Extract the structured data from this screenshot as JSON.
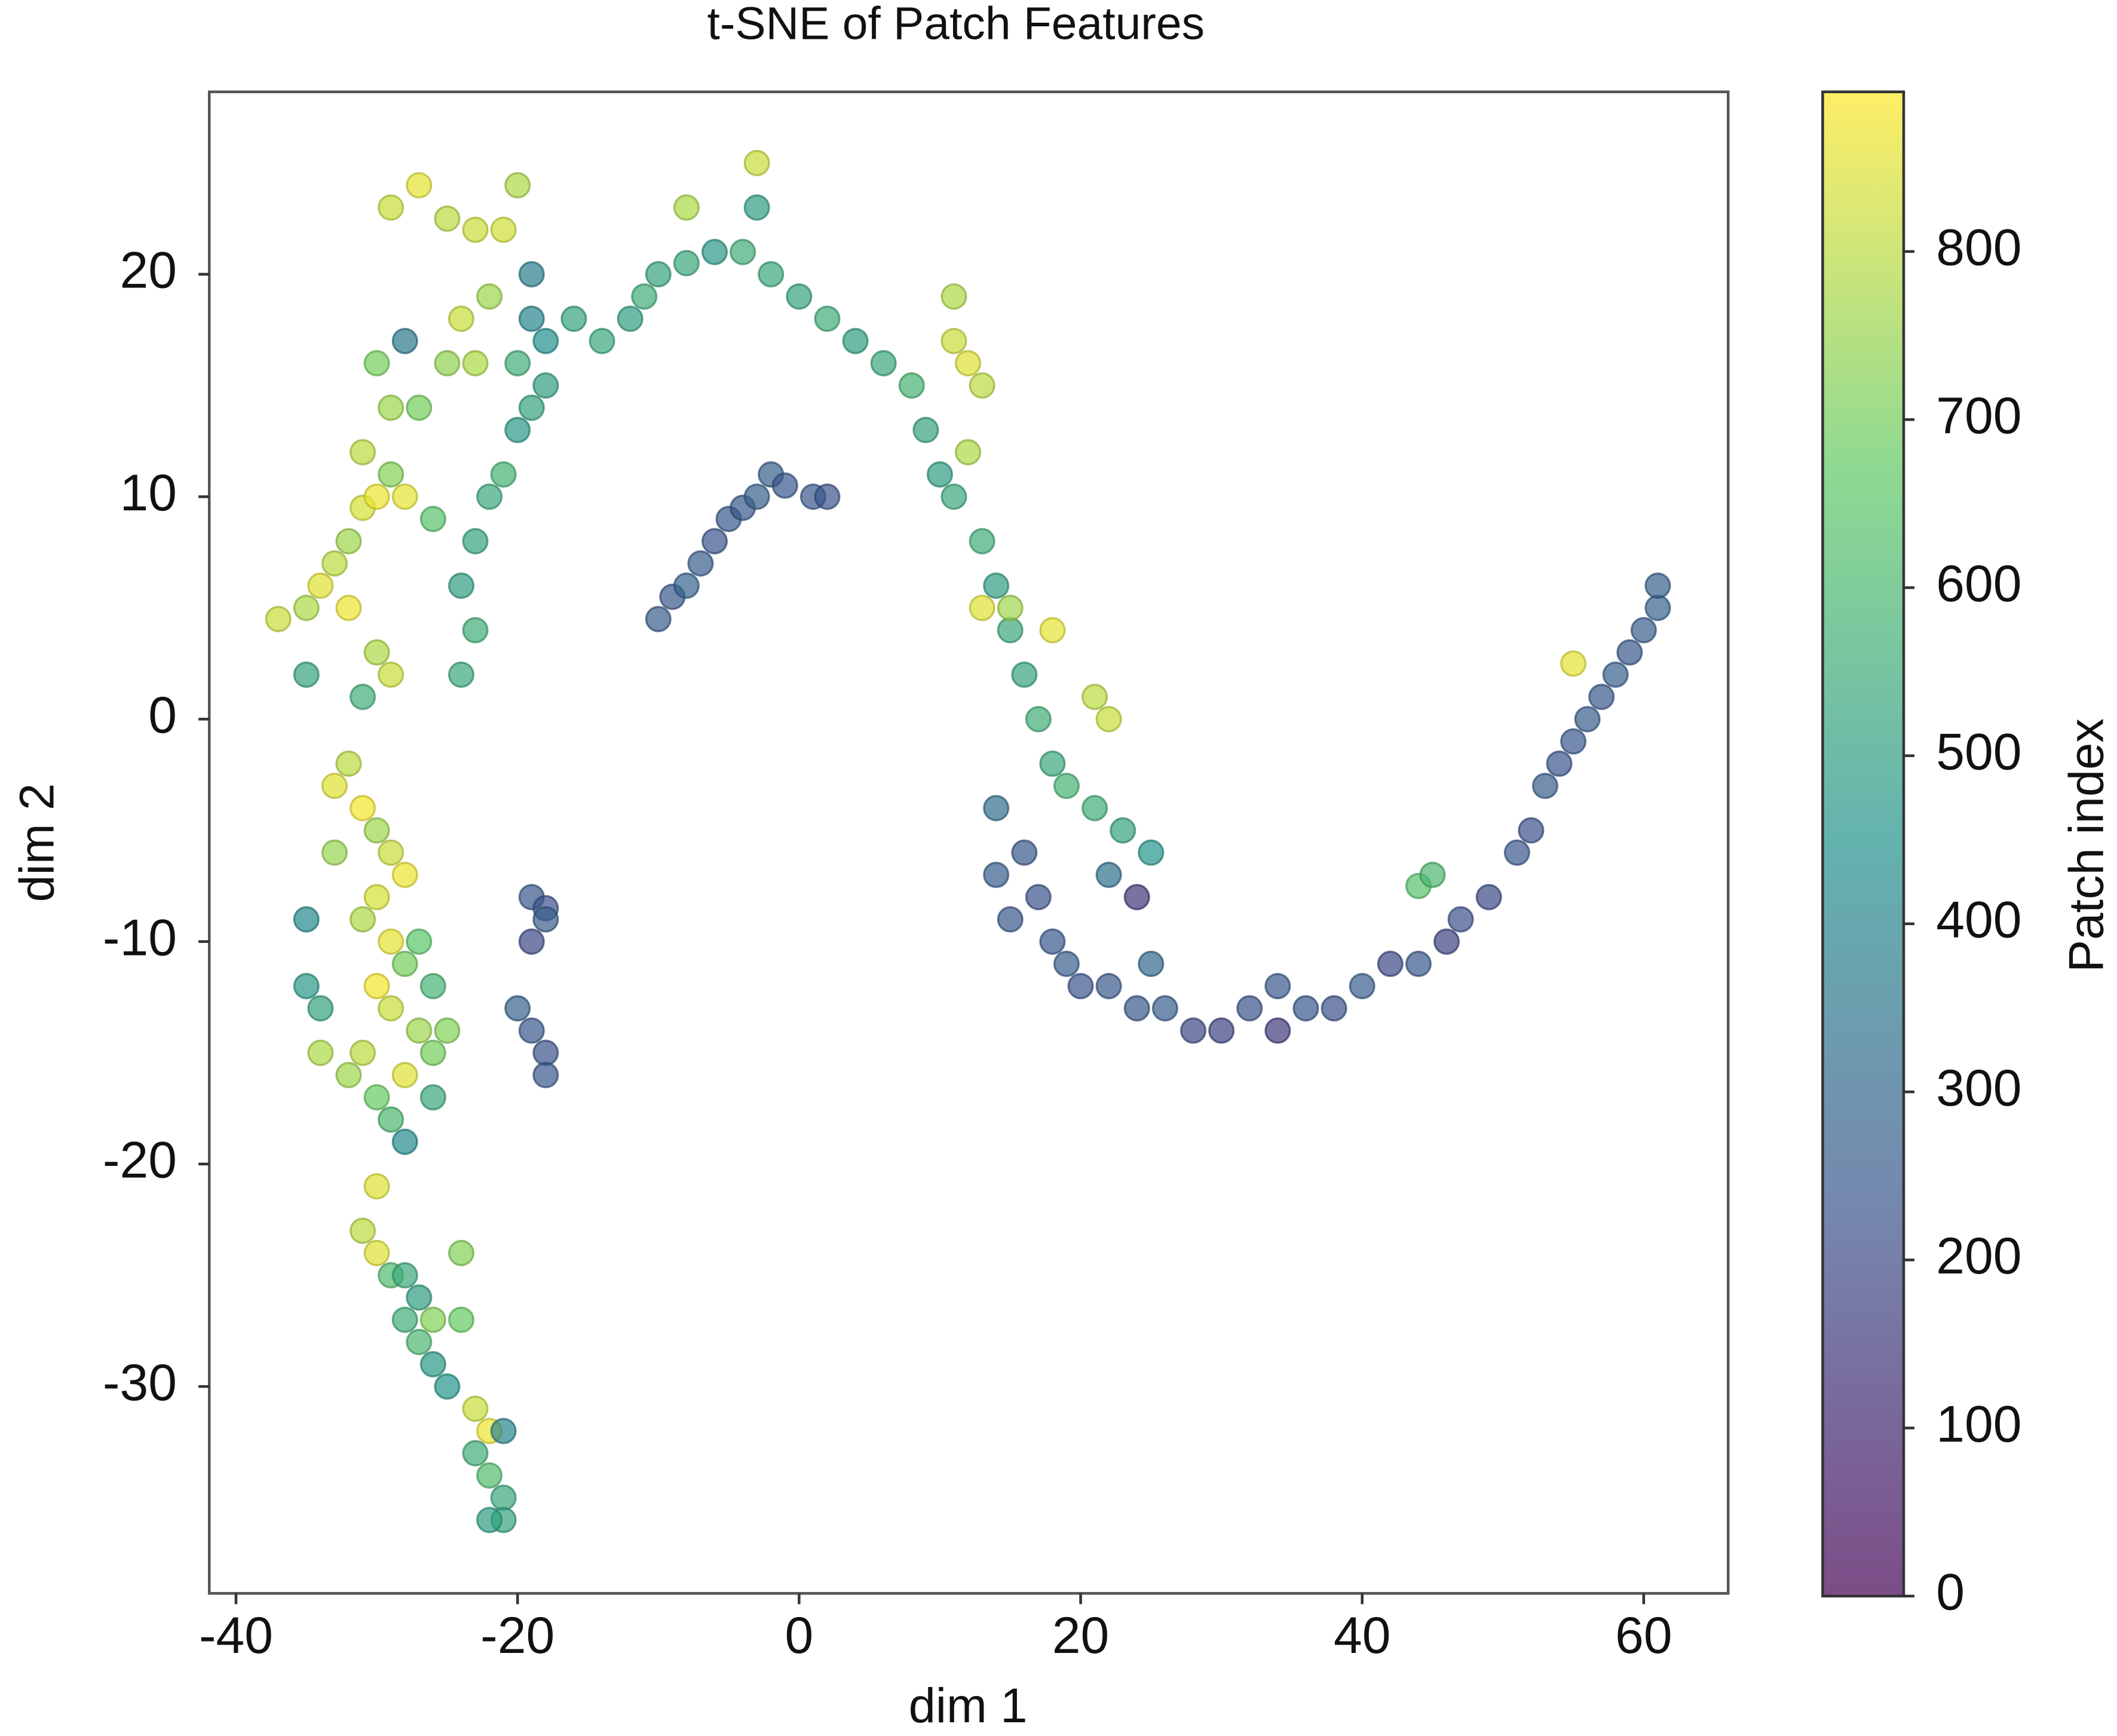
{
  "chart_data": {
    "type": "scatter",
    "title": "t-SNE of Patch Features",
    "x_label": "dim 1",
    "y_label": "dim 2",
    "colorbar_label": "Patch index",
    "colormap": [
      "#440154",
      "#3b528b",
      "#21918c",
      "#5ec962",
      "#fde725"
    ],
    "alpha": 0.7,
    "xlim": [
      -41.9,
      66.0
    ],
    "xticks": [
      -40,
      -20,
      0,
      20,
      40,
      60
    ],
    "ylim": [
      -39.3,
      28.2
    ],
    "yticks": [
      -30,
      -20,
      -10,
      0,
      10,
      20
    ],
    "clim": [
      0,
      895
    ],
    "cticks": [
      0,
      100,
      200,
      300,
      400,
      500,
      600,
      700,
      800
    ],
    "x": [
      -37,
      -35,
      -34,
      -33,
      -32,
      -31,
      -30,
      -29,
      -31,
      -28,
      -32,
      -30,
      -29,
      -31,
      -35,
      -32,
      -33,
      -31,
      -30,
      -29,
      -28,
      -30,
      -31,
      -29,
      -28,
      -30,
      -29,
      -27,
      -26,
      -28,
      -31,
      -32,
      -30,
      -25,
      -26,
      -29,
      -28,
      -30,
      -35,
      -35,
      -34,
      -34,
      -27,
      -26,
      -33,
      -31,
      -30,
      -29,
      -28,
      -27,
      -28,
      -26,
      -27,
      -26,
      -25,
      -24,
      -24,
      -23,
      -22,
      -23,
      -22,
      -21,
      -21,
      -22,
      -21,
      -29,
      -27,
      -25,
      -23,
      -20,
      -21,
      -30,
      -28,
      -27,
      -29,
      -26,
      -25,
      -23,
      -24,
      -22,
      -24,
      -23,
      -24,
      -23,
      -22,
      -21,
      -20,
      -19,
      -18,
      -20,
      -18,
      -16,
      -14,
      -12,
      -11,
      -10,
      -8,
      -6,
      -4,
      -3,
      -2,
      0,
      2,
      4,
      6,
      8,
      9,
      10,
      11,
      13,
      14,
      15,
      16,
      17,
      18,
      19,
      21,
      23,
      25,
      -8,
      -3,
      -19,
      -19,
      11,
      11,
      12,
      13,
      12,
      13,
      15,
      18,
      22,
      21,
      55,
      44,
      45,
      -10,
      -9,
      -8,
      -7,
      -6,
      -5,
      -4,
      -3,
      -2,
      -1,
      1,
      2,
      -19,
      -18,
      -19,
      -18,
      -20,
      -19,
      -18,
      -18,
      14,
      14,
      15,
      16,
      17,
      18,
      19,
      20,
      22,
      24,
      25,
      26,
      28,
      30,
      32,
      34,
      34,
      36,
      38,
      40,
      42,
      44,
      46,
      47,
      49,
      51,
      52,
      53,
      54,
      55,
      56,
      57,
      58,
      59,
      60,
      61,
      61,
      24,
      22
    ],
    "values": [
      4.5,
      5,
      6,
      7,
      8,
      9.5,
      10,
      11,
      12,
      10,
      5,
      3,
      2,
      1,
      2,
      -2,
      -3,
      -4,
      -5,
      -6,
      -7,
      -8,
      -9,
      -10,
      -11,
      -12,
      -13,
      -14,
      -15,
      -16,
      -15,
      -16,
      -17,
      -14,
      -17,
      -18,
      -19,
      -21,
      -9,
      -12,
      -13,
      -15,
      -10,
      -12,
      -6,
      -23,
      -24,
      -25,
      -25,
      -26,
      -27,
      -27,
      -28,
      -29,
      -30,
      -24,
      -27,
      -31,
      -32,
      -33,
      -34,
      -35,
      -36,
      -36,
      -32,
      23,
      24,
      22.5,
      22,
      24,
      22,
      16,
      17,
      14,
      14,
      9,
      16,
      16,
      18,
      19,
      2,
      4,
      6,
      8,
      10,
      11,
      13,
      14,
      15,
      16,
      17,
      18,
      17,
      18,
      19,
      20,
      20.5,
      21,
      21,
      23,
      20,
      19,
      18,
      17,
      16,
      15,
      13,
      11,
      10,
      8,
      6,
      4,
      2,
      0,
      -2,
      -3,
      -4,
      -5,
      -6,
      23,
      25,
      18,
      20,
      19,
      17,
      16,
      15,
      12,
      5,
      5,
      4,
      0,
      1,
      2.5,
      -7.5,
      -7,
      4.5,
      5.5,
      6,
      7,
      8,
      9,
      9.5,
      10,
      11,
      10.5,
      10,
      10,
      -8,
      -8.5,
      -10,
      -9,
      -13,
      -14,
      -15,
      -16,
      -4,
      -7,
      -9,
      -6,
      -8,
      -10,
      -11,
      -12,
      -12,
      -13,
      -11,
      -13,
      -14,
      -14,
      -13,
      -12,
      -14,
      -13,
      -13,
      -12,
      -11,
      -11,
      -10,
      -9,
      -8,
      -6,
      -5,
      -3,
      -2,
      -1,
      0,
      1,
      2,
      3,
      4,
      5,
      6,
      -8,
      -7
    ],
    "color_values": [
      820,
      780,
      850,
      800,
      760,
      840,
      870,
      720,
      800,
      860,
      870,
      780,
      820,
      560,
      520,
      800,
      850,
      880,
      760,
      820,
      870,
      840,
      780,
      860,
      700,
      880,
      820,
      760,
      700,
      850,
      800,
      760,
      680,
      720,
      540,
      600,
      420,
      850,
      420,
      480,
      520,
      780,
      650,
      580,
      750,
      800,
      850,
      620,
      540,
      500,
      560,
      720,
      600,
      480,
      460,
      720,
      680,
      820,
      870,
      560,
      620,
      540,
      520,
      500,
      400,
      820,
      860,
      800,
      820,
      780,
      830,
      700,
      360,
      700,
      760,
      640,
      740,
      780,
      820,
      760,
      540,
      560,
      500,
      520,
      540,
      580,
      480,
      520,
      500,
      560,
      440,
      520,
      540,
      500,
      560,
      520,
      540,
      480,
      560,
      500,
      540,
      520,
      560,
      500,
      540,
      580,
      520,
      500,
      540,
      560,
      500,
      540,
      520,
      560,
      540,
      580,
      560,
      520,
      460,
      780,
      820,
      400,
      380,
      780,
      820,
      850,
      800,
      780,
      850,
      760,
      860,
      820,
      800,
      860,
      640,
      600,
      260,
      240,
      280,
      260,
      230,
      250,
      240,
      270,
      260,
      240,
      250,
      230,
      240,
      220,
      200,
      260,
      280,
      250,
      220,
      240,
      320,
      260,
      240,
      250,
      220,
      240,
      260,
      230,
      250,
      240,
      300,
      260,
      200,
      180,
      220,
      250,
      160,
      240,
      220,
      260,
      200,
      240,
      180,
      220,
      200,
      240,
      220,
      260,
      230,
      250,
      260,
      240,
      270,
      250,
      260,
      280,
      270,
      150,
      330
    ]
  }
}
